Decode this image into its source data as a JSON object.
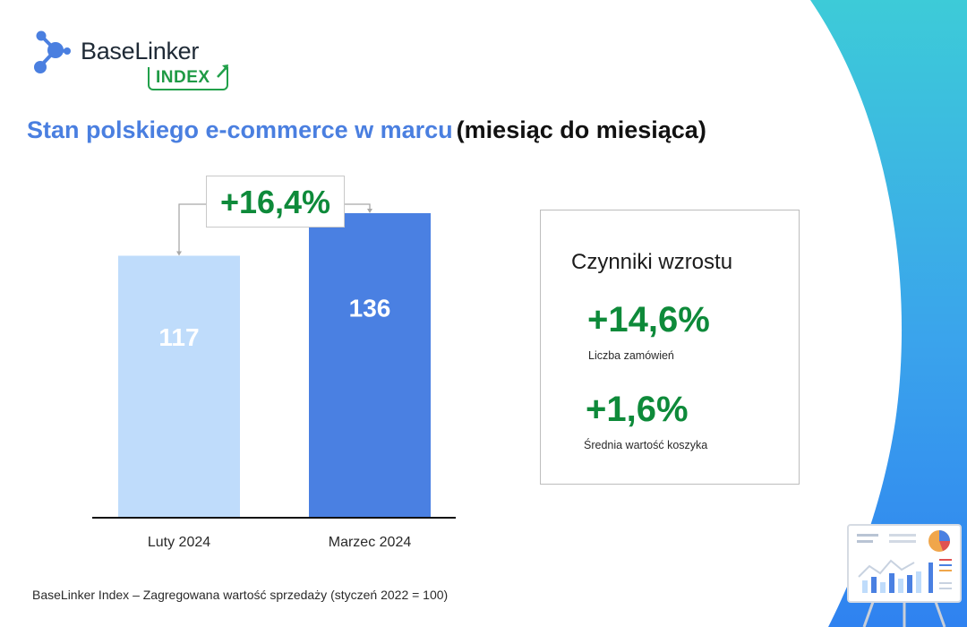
{
  "brand": {
    "name": "BaseLinker",
    "sub": "INDEX",
    "colors": {
      "accent": "#4a7fe0",
      "green": "#0e8a3a",
      "teal": "#3cc8d6"
    }
  },
  "title": {
    "main": "Stan polskiego e-commerce w marcu",
    "sub": "(miesiąc do miesiąca)"
  },
  "chart_data": {
    "type": "bar",
    "categories": [
      "Luty 2024",
      "Marzec 2024"
    ],
    "values": [
      117,
      136
    ],
    "data_labels": [
      "117",
      "136"
    ],
    "bar_colors": [
      "#bfdcfb",
      "#4a80e2"
    ],
    "change_label": "+16,4%",
    "ylim": [
      0,
      200
    ],
    "grid": false,
    "xlabel": "",
    "ylabel": ""
  },
  "factors": {
    "title": "Czynniki wzrostu",
    "items": [
      {
        "value": "+14,6%",
        "label": "Liczba zamówień"
      },
      {
        "value": "+1,6%",
        "label": "Średnia wartość koszyka"
      }
    ]
  },
  "footnote": "BaseLinker Index – Zagregowana wartość sprzedaży (styczeń 2022 = 100)",
  "icons": [
    "logo-molecule-icon",
    "trend-arrow-icon",
    "presentation-board-icon"
  ]
}
